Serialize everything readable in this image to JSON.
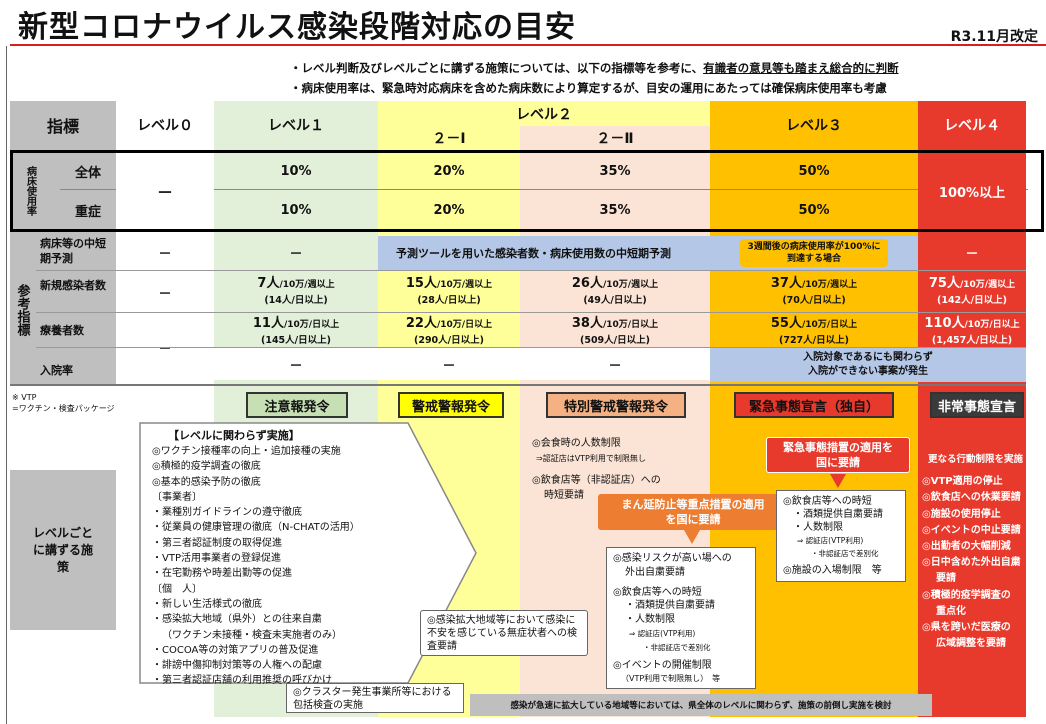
{
  "title": "新型コロナウイルス感染段階対応の目安",
  "revised": "R3.11月改定",
  "notes": {
    "line1_a": "・レベル判断及びレベルごとに講ずる施策については、以下の指標等を参考に、",
    "line1_b": "有識者の意見等も踏まえ総合的に判断",
    "line2": "・病床使用率は、緊急時対応病床を含めた病床数により算定するが、目安の運用にあたっては確保病床使用率も考慮"
  },
  "header": {
    "indicator": "指標",
    "level0": "レベル０",
    "level1": "レベル１",
    "level2": "レベル２",
    "level2_1": "２－Ⅰ",
    "level2_2": "２－Ⅱ",
    "level3": "レベル３",
    "level4": "レベル４"
  },
  "bed": {
    "label": "病床使用率",
    "all": "全体",
    "severe": "重症",
    "l0": "－",
    "l1_all": "10%",
    "l1_sev": "10%",
    "l21_all": "20%",
    "l21_sev": "20%",
    "l22_all": "35%",
    "l22_sev": "35%",
    "l3_all": "50%",
    "l3_sev": "50%",
    "l4": "100%以上"
  },
  "ref": {
    "label": "参考指標",
    "forecast_label": "病床等の中短期予測",
    "forecast_l0": "－",
    "forecast_l1": "－",
    "forecast_l2": "予測ツールを用いた感染者数・病床使用数の中短期予測",
    "forecast_l3": "3週間後の病床使用率が100%に到達する場合",
    "forecast_l4": "－",
    "new_label": "新規感染者数",
    "new_l0": "－",
    "new_l1_a": "7人",
    "new_l1_b": "/10万/週以上",
    "new_l1_c": "(14人/日以上)",
    "new_l21_a": "15人",
    "new_l21_b": "/10万/週以上",
    "new_l21_c": "(28人/日以上)",
    "new_l22_a": "26人",
    "new_l22_b": "/10万/週以上",
    "new_l22_c": "(49人/日以上)",
    "new_l3_a": "37人",
    "new_l3_b": "/10万/週以上",
    "new_l3_c": "(70人/日以上)",
    "new_l4_a": "75人",
    "new_l4_b": "/10万/週以上",
    "new_l4_c": "(142人/日以上)",
    "care_label": "療養者数",
    "care_l0": "－",
    "care_l1_a": "11人",
    "care_l1_b": "/10万/日以上",
    "care_l1_c": "(145人/日以上)",
    "care_l21_a": "22人",
    "care_l21_b": "/10万/日以上",
    "care_l21_c": "(290人/日以上)",
    "care_l22_a": "38人",
    "care_l22_b": "/10万/日以上",
    "care_l22_c": "(509人/日以上)",
    "care_l3_a": "55人",
    "care_l3_b": "/10万/日以上",
    "care_l3_c": "(727人/日以上)",
    "care_l4_a": "110人",
    "care_l4_b": "/10万/日以上",
    "care_l4_c": "(1,457人/日以上)",
    "hosp_label": "入院率",
    "hosp_l1": "－",
    "hosp_l21": "－",
    "hosp_l22": "－",
    "hosp_l34": "入院対象であるにも関わらず入院ができない事案が発生"
  },
  "vtp_note": {
    "a": "※ VTP",
    "b": "=ワクチン・検査パッケージ"
  },
  "measures": {
    "label": "レベルごとに講ずる施策",
    "pill_l1": "注意報発令",
    "pill_l21": "警戒警報発令",
    "pill_l22": "特別警戒警報発令",
    "pill_l3": "緊急事態宣言（独自）",
    "pill_l4": "非常事態宣言",
    "common_title": "【レベルに関わらず実施】",
    "common_lines": [
      "◎ワクチン接種率の向上・追加接種の実施",
      "◎積極的疫学調査の徹底",
      "◎基本的感染予防の徹底",
      "〔事業者〕",
      "・業種別ガイドラインの遵守徹底",
      "・従業員の健康管理の徹底（N-CHATの活用）",
      "・第三者認証制度の取得促進",
      "・VTP活用事業者の登録促進",
      "・在宅勤務や時差出勤等の促進",
      "〔個　人〕",
      "・新しい生活様式の徹底",
      "・感染拡大地域（県外）との往来自粛",
      "（ワクチン未接種・検査未実施者のみ）",
      "・COCOA等の対策アプリの普及促進",
      "・誹謗中傷抑制対策等の人権への配慮",
      "・第三者認証店舗の利用推奨の呼びかけ"
    ],
    "cluster": "◎クラスター発生事業所等における包括検査の実施",
    "anxious": "◎感染拡大地域等において感染に不安を感じている無症状者への検査要請",
    "l22_a": "◎会食時の人数制限",
    "l22_b": "⇒認証店はVTP利用で制限無し",
    "l22_c": "◎飲食店等（非認証店）への",
    "l22_d": "時短要請",
    "manen": "まん延防止等重点措置の適用を国に要請",
    "l3_box_lines": [
      "◎感染リスクが高い場への",
      "外出自粛要請",
      "◎飲食店等への時短",
      "・酒類提供自粛要請",
      "・人数制限",
      "⇒ 認証店(VTP利用)",
      "・非認証店で差別化",
      "◎イベントの開催制限",
      "（VTP利用で制限無し）　等"
    ],
    "kinkyu": "緊急事態措置の適用を国に要請",
    "l3_right_lines": [
      "◎飲食店等への時短",
      "・酒類提供自粛要請",
      "・人数制限",
      "⇒ 認証店(VTP利用)",
      "・非認証店で差別化",
      "◎施設の入場制限　等"
    ],
    "l4_lines": [
      "更なる行動制限を実施",
      "◎VTP適用の停止",
      "◎飲食店への休業要請",
      "◎施設の使用停止",
      "◎イベントの中止要請",
      "◎出勤者の大幅削減",
      "◎日中含めた外出自粛",
      "要請",
      "◎積極的疫学調査の",
      "重点化",
      "◎県を跨いだ医療の",
      "広域調整を要請"
    ],
    "bottom": "感染が急速に拡大している地域等においては、県全体のレベルに関わらず、施策の前倒し実施を検討"
  },
  "colors": {
    "level0": "#ffffff",
    "level1": "#e2efd9",
    "level2_1": "#ffff99",
    "level2_2": "#fbe4d5",
    "level3": "#ffc000",
    "level4": "#e8392d",
    "label_gray": "#bfbfbf",
    "forecast_blue": "#b4c7e7"
  }
}
